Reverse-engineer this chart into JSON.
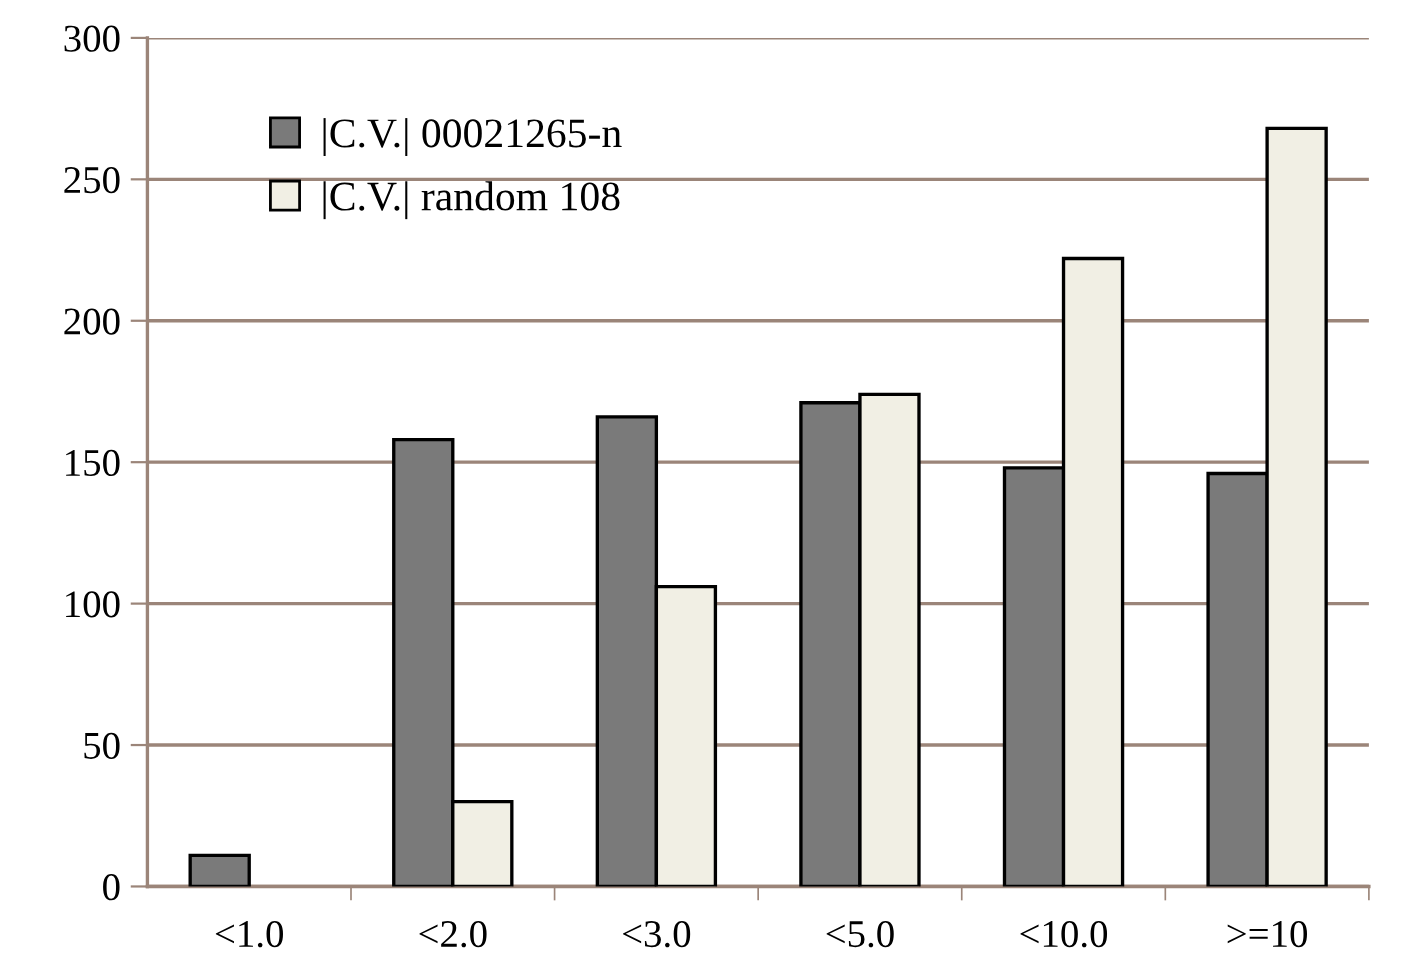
{
  "chart_data": {
    "type": "bar",
    "categories": [
      "<1.0",
      "<2.0",
      "<3.0",
      "<5.0",
      "<10.0",
      ">=10"
    ],
    "series": [
      {
        "name": "|C.V.| 00021265-n",
        "color": "#7a7a7a",
        "values": [
          11,
          158,
          166,
          171,
          148,
          146
        ]
      },
      {
        "name": "|C.V.| random 108",
        "color": "#f1efe4",
        "values": [
          null,
          30,
          106,
          174,
          222,
          268
        ]
      }
    ],
    "ylim": [
      0,
      300
    ],
    "yticks": [
      0,
      50,
      100,
      150,
      200,
      250,
      300
    ],
    "grid": "y",
    "legend": "top left"
  }
}
